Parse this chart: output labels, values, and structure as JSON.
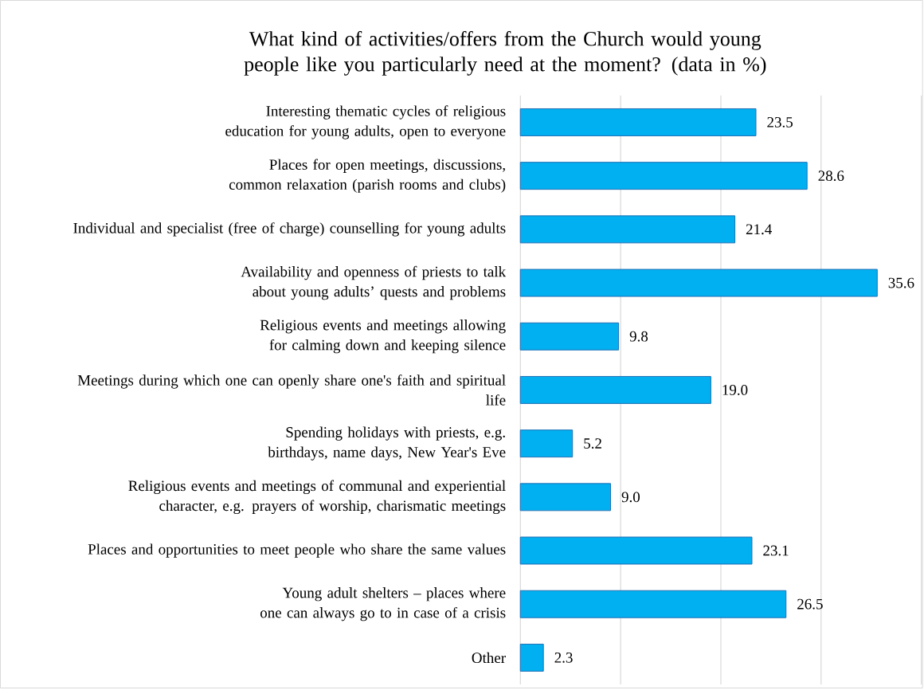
{
  "chart_data": {
    "type": "bar",
    "orientation": "horizontal",
    "title": "What kind of activities/offers from the Church would young people like you particularly need at the moment? (data in %)",
    "categories": [
      "Interesting thematic cycles of religious education for young adults, open to everyone",
      "Places for open meetings, discussions, common relaxation (parish rooms and clubs)",
      "Individual and specialist (free of charge) counselling for young adults",
      "Availability and openness of priests to talk about young adults’ quests and problems",
      "Religious events and meetings allowing for calming down and keeping silence",
      "Meetings during which one can openly share one's faith and spiritual life",
      "Spending holidays with priests, e.g. birthdays, name days, New Year's Eve",
      "Religious events and meetings of communal and experiential character, e.g. prayers of worship, charismatic meetings",
      "Places and opportunities to meet people who share the same values",
      "Young adult shelters – places where one can always go to in case of a crisis",
      "Other"
    ],
    "values": [
      23.5,
      28.6,
      21.4,
      35.6,
      9.8,
      19.0,
      5.2,
      9.0,
      23.1,
      26.5,
      2.3
    ],
    "value_labels": [
      "23.5",
      "28.6",
      "21.4",
      "35.6",
      "9.8",
      "19.0",
      "5.2",
      "9.0",
      "23.1",
      "26.5",
      "2.3"
    ],
    "color": "#00b0f0",
    "xlim": [
      0,
      40
    ],
    "xticks": [
      {
        "value": 0,
        "label": null
      },
      {
        "value": 10,
        "label": null
      },
      {
        "value": 20,
        "label": null
      },
      {
        "value": 30,
        "label": null
      },
      {
        "value": 40,
        "label": null
      }
    ],
    "grid": "x",
    "tick_labels": "y"
  }
}
